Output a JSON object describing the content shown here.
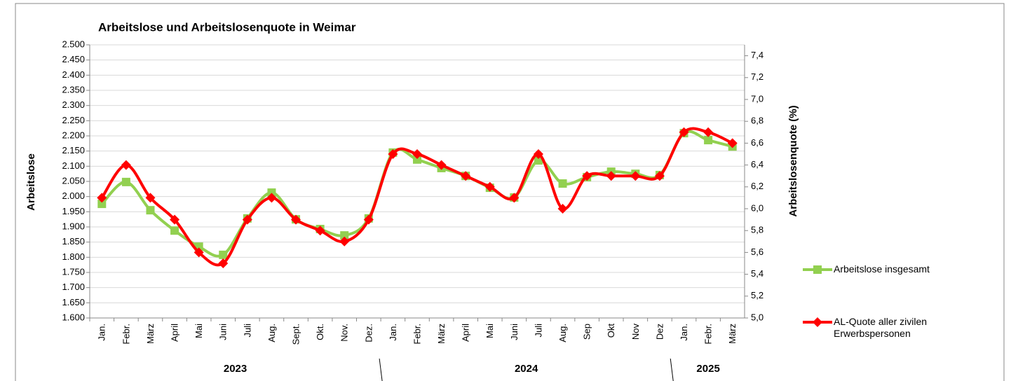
{
  "chart_data": {
    "type": "line",
    "title": "Arbeitslose und Arbeitslosenquote in Weimar",
    "y_label": "Arbeitslose",
    "y2_label": "Arbeitslosenquote (%)",
    "categories": [
      "Jan.",
      "Febr.",
      "März",
      "April",
      "Mai",
      "Juni",
      "Juli",
      "Aug.",
      "Sept.",
      "Okt.",
      "Nov.",
      "Dez.",
      "Jan.",
      "Febr.",
      "März",
      "April",
      "Mai",
      "Juni",
      "Juli",
      "Aug.",
      "Sep",
      "Okt",
      "Nov",
      "Dez",
      "Jan.",
      "Febr.",
      "März"
    ],
    "year_groups": [
      {
        "label": "2023",
        "count": 12
      },
      {
        "label": "2024",
        "count": 12
      },
      {
        "label": "2025",
        "count": 3
      }
    ],
    "series": [
      {
        "name": "Arbeitslose insgesamt",
        "color": "#92d050",
        "values": [
          1976,
          2048,
          1955,
          1888,
          1835,
          1808,
          1928,
          2013,
          1925,
          1893,
          1872,
          1928,
          2145,
          2122,
          2094,
          2068,
          2029,
          1997,
          2119,
          2043,
          2064,
          2082,
          2075,
          2071,
          2209,
          2186,
          2165
        ]
      },
      {
        "name": "AL-Quote aller zivilen Erwerbspersonen",
        "color": "#ff0000",
        "axis": "y2",
        "values": [
          6.1,
          6.4,
          6.1,
          5.9,
          5.6,
          5.5,
          5.9,
          6.1,
          5.9,
          5.8,
          5.7,
          5.9,
          6.5,
          6.5,
          6.4,
          6.3,
          6.2,
          6.1,
          6.5,
          6.0,
          6.3,
          6.3,
          6.3,
          6.3,
          6.7,
          6.7,
          6.6
        ]
      }
    ],
    "ylim": [
      1600,
      2500
    ],
    "yticks": [
      {
        "value": 1600,
        "label": "1.600"
      },
      {
        "value": 1650,
        "label": "1.650"
      },
      {
        "value": 1700,
        "label": "1.700"
      },
      {
        "value": 1750,
        "label": "1.750"
      },
      {
        "value": 1800,
        "label": "1.800"
      },
      {
        "value": 1850,
        "label": "1.850"
      },
      {
        "value": 1900,
        "label": "1.900"
      },
      {
        "value": 1950,
        "label": "1.950"
      },
      {
        "value": 2000,
        "label": "2.000"
      },
      {
        "value": 2050,
        "label": "2.050"
      },
      {
        "value": 2100,
        "label": "2.100"
      },
      {
        "value": 2150,
        "label": "2.150"
      },
      {
        "value": 2200,
        "label": "2.200"
      },
      {
        "value": 2250,
        "label": "2.250"
      },
      {
        "value": 2300,
        "label": "2.300"
      },
      {
        "value": 2350,
        "label": "2.350"
      },
      {
        "value": 2400,
        "label": "2.400"
      },
      {
        "value": 2450,
        "label": "2.450"
      },
      {
        "value": 2500,
        "label": "2.500"
      }
    ],
    "y2lim": [
      5.0,
      7.5
    ],
    "y2ticks": [
      {
        "value": 5.0,
        "label": "5,0"
      },
      {
        "value": 5.2,
        "label": "5,2"
      },
      {
        "value": 5.4,
        "label": "5,4"
      },
      {
        "value": 5.6,
        "label": "5,6"
      },
      {
        "value": 5.8,
        "label": "5,8"
      },
      {
        "value": 6.0,
        "label": "6,0"
      },
      {
        "value": 6.2,
        "label": "6,2"
      },
      {
        "value": 6.4,
        "label": "6,4"
      },
      {
        "value": 6.6,
        "label": "6,6"
      },
      {
        "value": 6.8,
        "label": "6,8"
      },
      {
        "value": 7.0,
        "label": "7,0"
      },
      {
        "value": 7.2,
        "label": "7,2"
      },
      {
        "value": 7.4,
        "label": "7,4"
      }
    ],
    "grid": true,
    "legend": "right"
  }
}
